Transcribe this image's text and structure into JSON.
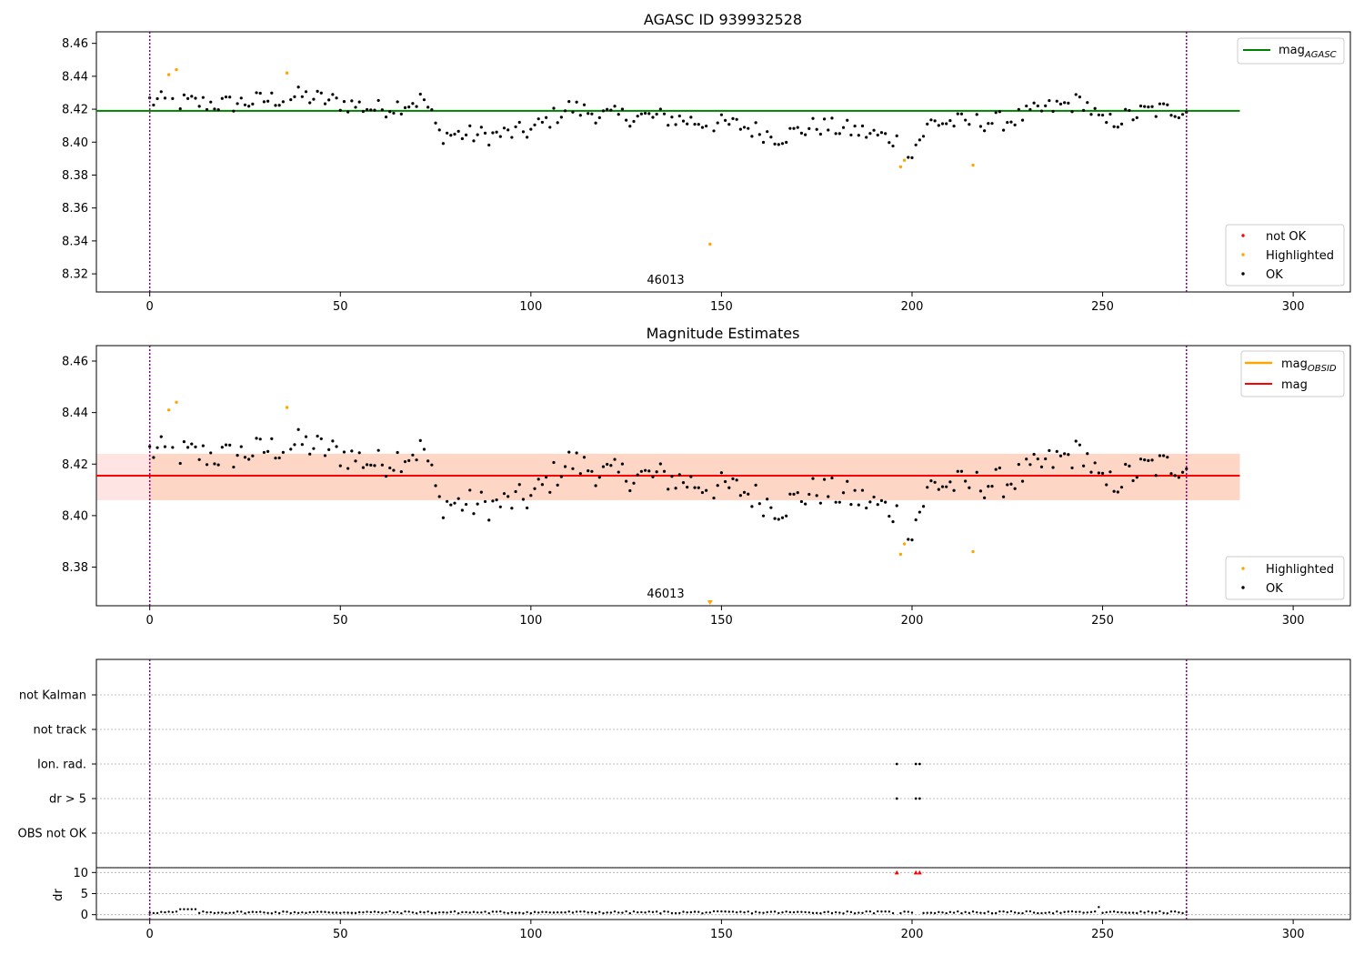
{
  "figure": {
    "title_top": "AGASC ID 939932528",
    "title_mid": "Magnitude Estimates",
    "obsid_label": "46013",
    "colors": {
      "ok": "#000000",
      "highlighted": "#ffa500",
      "not_ok": "#ff0000",
      "agasc_line": "#008000",
      "mag_line": "#ff0000",
      "mag_obsid": "#ffa500",
      "band_inner": "#fdd5c4",
      "band_outer": "#ffe4e4",
      "obs_boundary": "#800080"
    }
  },
  "chart_data": [
    {
      "type": "scatter",
      "title": "AGASC ID 939932528",
      "xlim": [
        -14,
        315
      ],
      "ylim": [
        8.309,
        8.467
      ],
      "xticks": [
        0,
        50,
        100,
        150,
        200,
        250,
        300
      ],
      "yticks": [
        8.32,
        8.34,
        8.36,
        8.38,
        8.4,
        8.42,
        8.44,
        8.46
      ],
      "obs_boundaries": [
        0,
        272
      ],
      "obsid_annotation": {
        "text": "46013",
        "x": 136
      },
      "mag_agasc": 8.419,
      "legend_lines": [
        "mag",
        "AGASC"
      ],
      "legend_points": [
        "not OK",
        "Highlighted",
        "OK"
      ],
      "highlighted_points": [
        [
          5,
          8.441
        ],
        [
          7,
          8.444
        ],
        [
          36,
          8.442
        ],
        [
          147,
          8.338
        ],
        [
          197,
          8.385
        ],
        [
          198,
          8.389
        ],
        [
          216,
          8.386
        ]
      ],
      "not_ok_points": []
    },
    {
      "type": "scatter",
      "title": "Magnitude Estimates",
      "xlim": [
        -14,
        315
      ],
      "ylim": [
        8.365,
        8.466
      ],
      "xticks": [
        0,
        50,
        100,
        150,
        200,
        250,
        300
      ],
      "yticks": [
        8.38,
        8.4,
        8.42,
        8.44,
        8.46
      ],
      "mag": 8.4155,
      "band_inner": [
        8.406,
        8.424
      ],
      "band_outer": [
        8.4065,
        8.4235
      ],
      "legend_lines": [
        [
          "mag",
          "OBSID"
        ],
        [
          "mag",
          ""
        ]
      ],
      "legend_points": [
        "Highlighted",
        "OK"
      ],
      "highlighted_points": [
        [
          5,
          8.441
        ],
        [
          7,
          8.444
        ],
        [
          36,
          8.442
        ],
        [
          197,
          8.385
        ],
        [
          198,
          8.389
        ],
        [
          216,
          8.386
        ]
      ],
      "clipped_marker": [
        147,
        8.366
      ]
    },
    {
      "type": "scatter",
      "flag_labels": [
        "not Kalman",
        "not track",
        "Ion. rad.",
        "dr > 5",
        "OBS not OK"
      ],
      "flag_points": {
        "Ion. rad.": [
          196,
          201,
          202
        ],
        "dr > 5": [
          196,
          201,
          202
        ]
      },
      "dr_ylabel": "dr",
      "dr_yticks": [
        0,
        5,
        10
      ],
      "dr_ylim": [
        -0.5,
        10.5
      ],
      "dr_clipped": [
        196,
        201,
        202
      ],
      "xticks": [
        0,
        50,
        100,
        150,
        200,
        250,
        300
      ]
    }
  ]
}
